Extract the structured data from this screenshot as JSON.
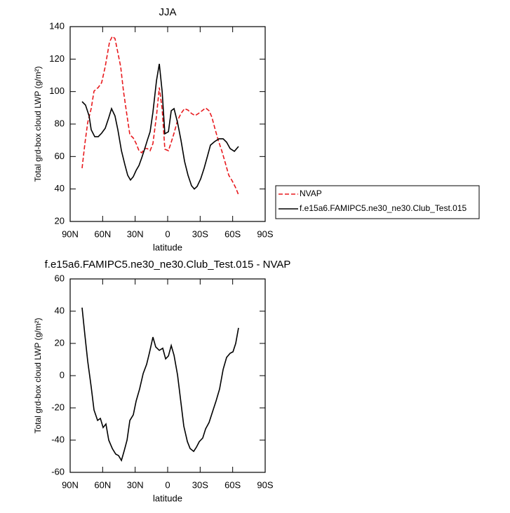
{
  "chart_data": [
    {
      "type": "line",
      "title": "JJA",
      "xlabel": "latitude",
      "ylabel": "Total grd-box cloud LWP (g/m²)",
      "xlim": [
        90,
        -90
      ],
      "xticks": [
        {
          "value": 90,
          "label": "90N"
        },
        {
          "value": 60,
          "label": "60N"
        },
        {
          "value": 30,
          "label": "30N"
        },
        0,
        {
          "value": -30,
          "label": "30S"
        },
        {
          "value": -60,
          "label": "60S"
        },
        {
          "value": -90,
          "label": "90S"
        }
      ],
      "ylim": [
        20,
        140
      ],
      "yticks": [
        20,
        40,
        60,
        80,
        100,
        120,
        140
      ],
      "legend": "right",
      "series": [
        {
          "name": "NVAP",
          "color": "#e8191d",
          "dash": true,
          "x": [
            79,
            76.4,
            73.8,
            70.6,
            68,
            64.1,
            60.9,
            57.6,
            53.7,
            51.1,
            48.6,
            46,
            43.4,
            40.8,
            37.5,
            34.9,
            31.7,
            29.1,
            26.5,
            23.9,
            21.3,
            18.8,
            16.2,
            13.6,
            10.3,
            7.7,
            5.1,
            2.6,
            -0.7,
            -3.3,
            -5.9,
            -9.1,
            -12.3,
            -15.6,
            -18.8,
            -22,
            -25.3,
            -28.5,
            -31.8,
            -35,
            -38.2,
            -40.8,
            -43.4,
            -46.7,
            -49.9,
            -53.1,
            -56.4,
            -59.6,
            -62.8,
            -65.4
          ],
          "values": [
            52.8,
            67.9,
            80.9,
            89.5,
            100.3,
            102.5,
            105.5,
            115.4,
            130.5,
            134,
            132.7,
            124,
            115.4,
            100.3,
            85,
            73.5,
            71.4,
            68,
            63.6,
            62.3,
            64.9,
            64.9,
            63.6,
            68,
            85.2,
            102.5,
            89.5,
            64.5,
            63.6,
            68.8,
            74.4,
            82.2,
            86.5,
            89.5,
            88.6,
            86.5,
            85.2,
            86.5,
            88.2,
            89.9,
            88.2,
            84.3,
            77.8,
            70,
            63.6,
            56.3,
            48.5,
            45,
            40.7,
            36.4
          ]
        },
        {
          "name": "f.e15a6.FAMIPC5.ne30_ne30.Club_Test.015",
          "color": "#000000",
          "dash": false,
          "x": [
            79,
            75.8,
            72.5,
            70.6,
            67.3,
            64.1,
            60.9,
            57.6,
            54.4,
            51.8,
            48.6,
            46,
            42.7,
            39.5,
            36.9,
            34.3,
            31.7,
            29.1,
            26.5,
            23.9,
            21.3,
            18.8,
            16.2,
            13.6,
            10.3,
            7.7,
            5.1,
            2.6,
            -0.7,
            -3.3,
            -5.9,
            -9.1,
            -12.3,
            -15.6,
            -18.8,
            -22,
            -24.6,
            -27.2,
            -30.5,
            -33.7,
            -36.9,
            -39.5,
            -43.4,
            -47.3,
            -51.2,
            -54.4,
            -57.7,
            -61.6,
            -65.4
          ],
          "values": [
            93.8,
            91.7,
            85,
            76.5,
            72.2,
            72.2,
            74.4,
            77.4,
            83.9,
            89.5,
            85,
            76.5,
            63.6,
            55,
            48.5,
            45.5,
            47.6,
            51.5,
            54.5,
            59.3,
            64.5,
            70,
            75.3,
            87.3,
            106.8,
            117.1,
            100.3,
            74,
            75.3,
            88.2,
            89.5,
            80.9,
            70,
            57,
            48.5,
            42,
            40,
            41.6,
            46.3,
            52.8,
            60.6,
            67,
            69.2,
            70.9,
            70.9,
            68.8,
            64.9,
            63.2,
            66.2
          ]
        }
      ]
    },
    {
      "type": "line",
      "title": "f.e15a6.FAMIPC5.ne30_ne30.Club_Test.015 - NVAP",
      "xlabel": "latitude",
      "ylabel": "Total grd-box cloud LWP (g/m²)",
      "xlim": [
        90,
        -90
      ],
      "xticks": [
        {
          "value": 90,
          "label": "90N"
        },
        {
          "value": 60,
          "label": "60N"
        },
        {
          "value": 30,
          "label": "30N"
        },
        0,
        {
          "value": -30,
          "label": "30S"
        },
        {
          "value": -60,
          "label": "60S"
        },
        {
          "value": -90,
          "label": "90S"
        }
      ],
      "ylim": [
        -60,
        60
      ],
      "yticks": [
        -60,
        -40,
        -20,
        0,
        20,
        40,
        60
      ],
      "series": [
        {
          "color": "#000000",
          "dash": false,
          "x": [
            79,
            76.4,
            73.8,
            70.6,
            68,
            64.7,
            62.1,
            59.6,
            57,
            54.4,
            51.1,
            47.9,
            45.3,
            42.7,
            40.1,
            37.5,
            34.9,
            31.7,
            29.1,
            25.9,
            22.6,
            19.4,
            16.8,
            13.6,
            11,
            7.7,
            4.5,
            1.9,
            -0.7,
            -3.3,
            -5.9,
            -9.1,
            -12.3,
            -14.9,
            -18.2,
            -20.7,
            -24,
            -26.6,
            -29.2,
            -32.4,
            -35,
            -38.2,
            -41.5,
            -44.7,
            -47.9,
            -51.2,
            -54.4,
            -57.7,
            -60.3,
            -62.8,
            -65.4
          ],
          "values": [
            42.2,
            25.2,
            9.1,
            -7,
            -21.3,
            -27.8,
            -26.5,
            -32.2,
            -30,
            -40,
            -45.2,
            -48.7,
            -49.6,
            -52.6,
            -46.5,
            -40,
            -27.8,
            -24.3,
            -15.7,
            -8.3,
            1.3,
            7,
            14.3,
            23.9,
            17.8,
            15.7,
            17,
            10.4,
            12.2,
            18.7,
            12.6,
            0.4,
            -17,
            -31.3,
            -40.9,
            -45.2,
            -47,
            -44.3,
            -40.9,
            -38.7,
            -33,
            -29.1,
            -22.2,
            -15.7,
            -8.3,
            3.9,
            11.3,
            13.9,
            14.8,
            20,
            29.6
          ]
        }
      ]
    }
  ]
}
